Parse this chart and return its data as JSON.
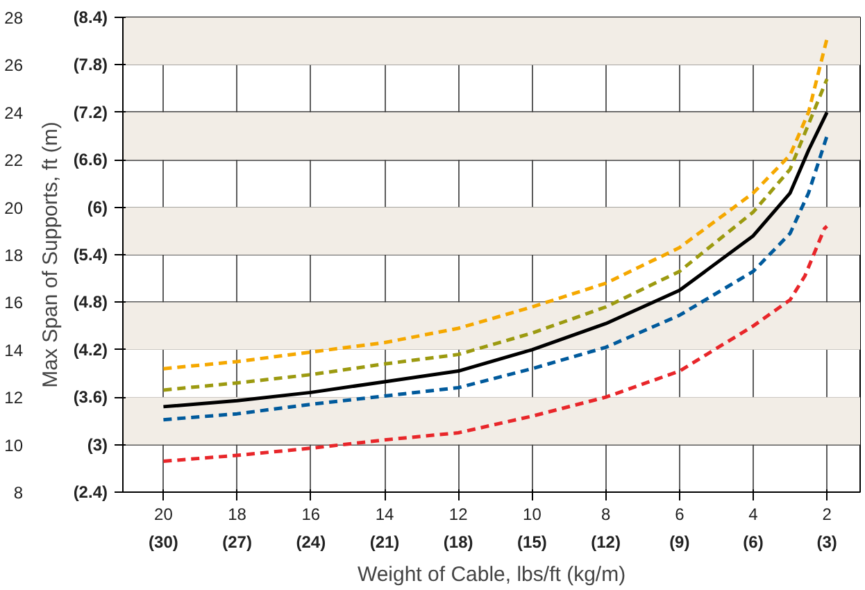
{
  "chart_data": {
    "type": "line",
    "xlabel": "Weight of Cable, lbs/ft (kg/m)",
    "ylabel": "Max Span of Supports, ft (m)",
    "xlim": [
      21.1,
      1.1
    ],
    "ylim": [
      8,
      28
    ],
    "xticks": [
      20,
      18,
      16,
      14,
      12,
      10,
      8,
      6,
      4,
      2
    ],
    "yticks": [
      8,
      10,
      12,
      14,
      16,
      18,
      20,
      22,
      24,
      26,
      28
    ],
    "x2lim": [
      31.65,
      1.65
    ],
    "x2ticks": [
      {
        "value": 30,
        "label": "(30)"
      },
      {
        "value": 27,
        "label": "(27)"
      },
      {
        "value": 24,
        "label": "(24)"
      },
      {
        "value": 21,
        "label": "(21)"
      },
      {
        "value": 18,
        "label": "(18)"
      },
      {
        "value": 15,
        "label": "(15)"
      },
      {
        "value": 12,
        "label": "(12)"
      },
      {
        "value": 9,
        "label": "(9)"
      },
      {
        "value": 6,
        "label": "(6)"
      },
      {
        "value": 3,
        "label": "(3)"
      }
    ],
    "y2lim": [
      2.4,
      8.4
    ],
    "y2ticks": [
      {
        "value": 2.4,
        "label": "(2.4)"
      },
      {
        "value": 3,
        "label": "(3)"
      },
      {
        "value": 3.6,
        "label": "(3.6)"
      },
      {
        "value": 4.2,
        "label": "(4.2)"
      },
      {
        "value": 4.8,
        "label": "(4.8)"
      },
      {
        "value": 5.4,
        "label": "(5.4)"
      },
      {
        "value": 6,
        "label": "(6)"
      },
      {
        "value": 6.6,
        "label": "(6.6)"
      },
      {
        "value": 7.2,
        "label": "(7.2)"
      },
      {
        "value": 7.8,
        "label": "(7.8)"
      },
      {
        "value": 8.4,
        "label": "(8.4)"
      }
    ],
    "grid": true,
    "bands": [
      {
        "axis": "y",
        "from": 10,
        "to": 12,
        "color": "#f2ede6"
      },
      {
        "axis": "y",
        "from": 14,
        "to": 16,
        "color": "#f2ede6"
      },
      {
        "axis": "y",
        "from": 18,
        "to": 20,
        "color": "#f2ede6"
      },
      {
        "axis": "y",
        "from": 22,
        "to": 24,
        "color": "#f2ede6"
      },
      {
        "axis": "y",
        "from": 26,
        "to": 28,
        "color": "#f2ede6"
      }
    ],
    "series": [
      {
        "color": "#f5a800",
        "line_style": "dashed",
        "x": [
          20,
          18,
          16,
          14,
          12,
          10,
          8,
          6,
          4,
          3,
          2.5,
          2
        ],
        "values": [
          13.2,
          13.5,
          13.9,
          14.3,
          14.9,
          15.8,
          16.8,
          18.3,
          20.6,
          22.2,
          24.0,
          27.1
        ]
      },
      {
        "color": "#9c9a10",
        "line_style": "dashed",
        "x": [
          20,
          18,
          16,
          14,
          12,
          10,
          8,
          6,
          4,
          3,
          2.5,
          2
        ],
        "values": [
          12.3,
          12.6,
          12.95,
          13.4,
          13.8,
          14.7,
          15.8,
          17.3,
          19.8,
          21.6,
          23.5,
          25.4
        ]
      },
      {
        "color": "#000000",
        "line_style": "solid",
        "x": [
          20,
          18,
          16,
          14,
          12,
          10,
          8,
          6,
          4,
          3,
          2.5,
          2
        ],
        "values": [
          11.6,
          11.85,
          12.2,
          12.65,
          13.1,
          14.0,
          15.1,
          16.5,
          18.8,
          20.6,
          22.4,
          24.0
        ]
      },
      {
        "color": "#005a9c",
        "line_style": "dashed",
        "x": [
          20,
          18,
          16,
          14,
          12,
          10,
          8,
          6,
          4,
          3,
          2.5,
          2
        ],
        "values": [
          11.05,
          11.3,
          11.7,
          12.05,
          12.4,
          13.2,
          14.1,
          15.45,
          17.3,
          18.9,
          20.6,
          23.0
        ]
      },
      {
        "color": "#e8262a",
        "line_style": "dashed",
        "x": [
          20,
          18,
          16,
          14,
          12,
          10,
          8,
          6,
          4,
          3,
          2.6,
          2.07,
          2
        ],
        "values": [
          9.3,
          9.55,
          9.85,
          10.2,
          10.5,
          11.2,
          12.0,
          13.1,
          15.0,
          16.1,
          17.1,
          19.1,
          19.2
        ]
      }
    ]
  }
}
